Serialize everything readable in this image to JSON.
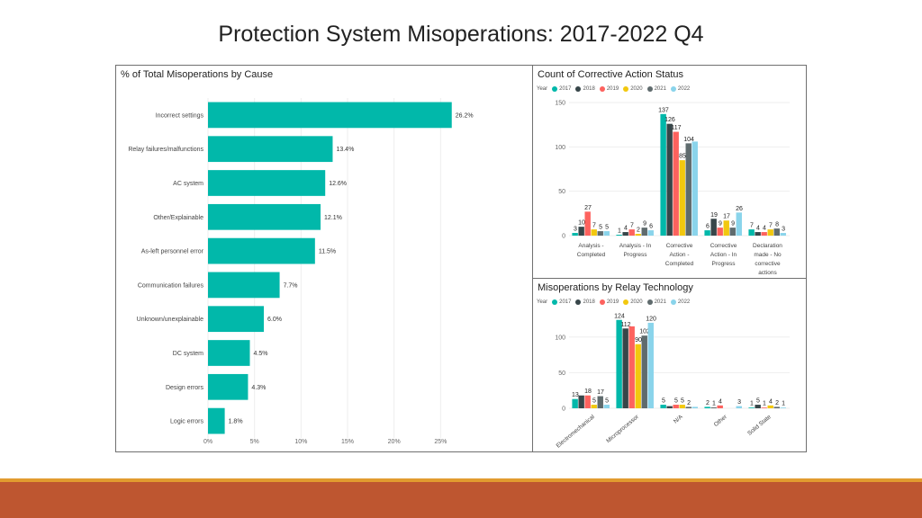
{
  "slide": {
    "title": "Protection System Misoperations:  2017-2022 Q4"
  },
  "colors": {
    "accent": "#01b8aa",
    "years": {
      "2017": "#01b8aa",
      "2018": "#374649",
      "2019": "#fd625e",
      "2020": "#f2c80f",
      "2021": "#5f6b6d",
      "2022": "#8ad4eb"
    },
    "footer_band": "#be5630",
    "footer_stripe": "#e29b2f"
  },
  "legend": {
    "label": "Year",
    "years": [
      "2017",
      "2018",
      "2019",
      "2020",
      "2021",
      "2022"
    ]
  },
  "chart_data": [
    {
      "id": "cause",
      "type": "bar",
      "orientation": "horizontal",
      "title": "% of Total Misoperations by Cause",
      "categories": [
        "Incorrect settings",
        "Relay failures/malfunctions",
        "AC system",
        "Other/Explainable",
        "As-left personnel error",
        "Communication failures",
        "Unknown/unexplainable",
        "DC system",
        "Design errors",
        "Logic errors"
      ],
      "values": [
        26.2,
        13.4,
        12.6,
        12.1,
        11.5,
        7.7,
        6.0,
        4.5,
        4.3,
        1.8
      ],
      "value_labels": [
        "26.2%",
        "13.4%",
        "12.6%",
        "12.1%",
        "11.5%",
        "7.7%",
        "6.0%",
        "4.5%",
        "4.3%",
        "1.8%"
      ],
      "xlim": [
        0,
        30
      ],
      "xticks": [
        0,
        5,
        10,
        15,
        20,
        25
      ],
      "xtick_labels": [
        "0%",
        "5%",
        "10%",
        "15%",
        "20%",
        "25%"
      ]
    },
    {
      "id": "corrective",
      "type": "bar",
      "title": "Count of Corrective Action Status",
      "categories": [
        [
          "Analysis -",
          "Completed"
        ],
        [
          "Analysis - In",
          "Progress"
        ],
        [
          "Corrective",
          "Action -",
          "Completed"
        ],
        [
          "Corrective",
          "Action - In",
          "Progress"
        ],
        [
          "Declaration",
          "made - No",
          "corrective",
          "actions"
        ]
      ],
      "series": [
        {
          "name": "2017",
          "values": [
            3,
            1,
            137,
            6,
            7
          ]
        },
        {
          "name": "2018",
          "values": [
            10,
            4,
            126,
            19,
            4
          ]
        },
        {
          "name": "2019",
          "values": [
            27,
            7,
            117,
            9,
            4
          ]
        },
        {
          "name": "2020",
          "values": [
            7,
            2,
            85,
            17,
            7
          ]
        },
        {
          "name": "2021",
          "values": [
            5,
            9,
            104,
            9,
            8
          ]
        },
        {
          "name": "2022",
          "values": [
            5,
            6,
            106,
            26,
            3
          ]
        }
      ],
      "data_labels": [
        [
          "3",
          "10",
          "27",
          "7",
          "5",
          "5"
        ],
        [
          "1",
          "4",
          "7",
          "2",
          "9",
          "6"
        ],
        [
          "137",
          "126",
          "117",
          "85",
          "104",
          ""
        ],
        [
          "6",
          "19",
          "9",
          "17",
          "9",
          "26"
        ],
        [
          "7",
          "4",
          "4",
          "7",
          "8",
          "3"
        ]
      ],
      "ylim": [
        0,
        150
      ],
      "yticks": [
        0,
        50,
        100,
        150
      ],
      "ytick_labels": [
        "0",
        "50",
        "100",
        "150"
      ]
    },
    {
      "id": "technology",
      "type": "bar",
      "title": "Misoperations by Relay Technology",
      "categories": [
        "Electromechanical",
        "Microprocessor",
        "N/A",
        "Other",
        "Solid State"
      ],
      "series": [
        {
          "name": "2017",
          "values": [
            13,
            124,
            5,
            2,
            1
          ]
        },
        {
          "name": "2018",
          "values": [
            18,
            112,
            3,
            1,
            5
          ]
        },
        {
          "name": "2019",
          "values": [
            18,
            115,
            5,
            4,
            1
          ]
        },
        {
          "name": "2020",
          "values": [
            5,
            90,
            5,
            0,
            4
          ]
        },
        {
          "name": "2021",
          "values": [
            17,
            102,
            2,
            0,
            2
          ]
        },
        {
          "name": "2022",
          "values": [
            5,
            120,
            2,
            3,
            1
          ]
        }
      ],
      "data_labels": [
        [
          "13",
          "",
          "18",
          "5",
          "17",
          "5"
        ],
        [
          "124",
          "112",
          "",
          "90",
          "102",
          "120"
        ],
        [
          "5",
          "",
          "5",
          "5",
          "2",
          ""
        ],
        [
          "2",
          "1",
          "4",
          "",
          "",
          "3"
        ],
        [
          "1",
          "5",
          "1",
          "4",
          "2",
          "1"
        ]
      ],
      "ylim": [
        0,
        130
      ],
      "yticks": [
        0,
        50,
        100
      ],
      "ytick_labels": [
        "0",
        "50",
        "100"
      ]
    }
  ]
}
